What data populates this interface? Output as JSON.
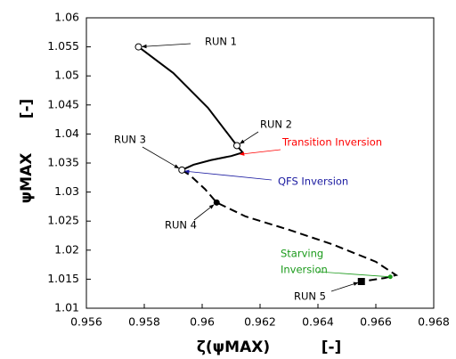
{
  "chart_data": {
    "type": "line",
    "xlabel": "ζ(ψMAX)",
    "xunit": "[-]",
    "ylabel": "ψMAX",
    "yunit": "[-]",
    "xlim": [
      0.956,
      0.968
    ],
    "xticks": [
      0.956,
      0.958,
      0.96,
      0.962,
      0.964,
      0.966,
      0.968
    ],
    "ylim": [
      1.01,
      1.06
    ],
    "yticks": [
      1.01,
      1.015,
      1.02,
      1.025,
      1.03,
      1.035,
      1.04,
      1.045,
      1.05,
      1.055,
      1.06
    ],
    "series": [
      {
        "color": "#000000",
        "dash": false,
        "x": [
          0.9578,
          0.959,
          0.9602,
          0.9612,
          0.9614,
          0.961,
          0.9603,
          0.9597,
          0.9593
        ],
        "values": [
          1.055,
          1.0505,
          1.0445,
          1.038,
          1.0368,
          1.0362,
          1.0355,
          1.0347,
          1.0338
        ]
      },
      {
        "color": "#000000",
        "dash": true,
        "x": [
          0.9593,
          0.9596,
          0.9601,
          0.9605,
          0.9615,
          0.963,
          0.9645,
          0.966,
          0.9667,
          0.9663,
          0.9655
        ],
        "values": [
          1.0338,
          1.0328,
          1.0305,
          1.0282,
          1.0258,
          1.0235,
          1.021,
          1.018,
          1.0157,
          1.0152,
          1.0146
        ]
      }
    ],
    "runs": [
      {
        "label": "RUN 1",
        "x": 0.9578,
        "y": 1.055,
        "marker": "open-circle"
      },
      {
        "label": "RUN 2",
        "x": 0.9612,
        "y": 1.038,
        "marker": "open-circle"
      },
      {
        "label": "RUN 3",
        "x": 0.9593,
        "y": 1.0338,
        "marker": "open-circle"
      },
      {
        "label": "RUN 4",
        "x": 0.9605,
        "y": 1.0282,
        "marker": "filled-circle"
      },
      {
        "label": "RUN 5",
        "x": 0.9655,
        "y": 1.0146,
        "marker": "filled-square"
      }
    ],
    "annotations": [
      {
        "lines": [
          "Transition Inversion"
        ],
        "color": "#ff0000",
        "x": 0.9613,
        "y": 1.0365
      },
      {
        "lines": [
          "QFS Inversion"
        ],
        "color": "#1a1aa0",
        "x": 0.9594,
        "y": 1.0336
      },
      {
        "lines": [
          "Starving",
          "Inversion"
        ],
        "color": "#1a9a1a",
        "x": 0.9665,
        "y": 1.0154
      }
    ]
  }
}
